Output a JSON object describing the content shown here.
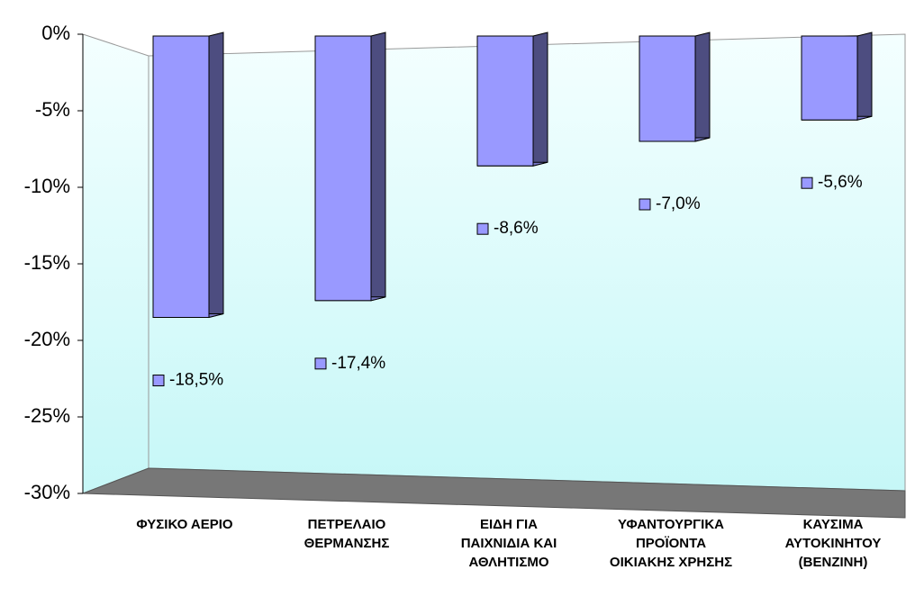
{
  "chart_data": {
    "type": "bar3d",
    "categories": [
      "ΦΥΣΙΚΟ ΑΕΡΙΟ",
      "ΠΕΤΡΕΛΑΙΟ\nΘΕΡΜΑΝΣΗΣ",
      "ΕΙΔΗ ΓΙΑ\nΠΑΙΧΝΙΔΙΑ ΚΑΙ\nΑΘΛΗΤΙΣΜΟ",
      "ΥΦΑΝΤΟΥΡΓΙΚΑ\nΠΡΟΪΟΝΤΑ\nΟΙΚΙΑΚΗΣ ΧΡΗΣΗΣ",
      "ΚΑΥΣΙΜΑ\nΑΥΤΟΚΙΝΗΤΟΥ\n(ΒΕΝΖΙΝΗ)"
    ],
    "values": [
      -18.5,
      -17.4,
      -8.6,
      -7.0,
      -5.6
    ],
    "value_labels": [
      "-18,5%",
      "-17,4%",
      "-8,6%",
      "-7,0%",
      "-5,6%"
    ],
    "color": "#9999ff",
    "ylim": [
      -30,
      0
    ],
    "yticks": [
      {
        "value": 0,
        "label": "0%"
      },
      {
        "value": -5,
        "label": "-5%"
      },
      {
        "value": -10,
        "label": "-10%"
      },
      {
        "value": -15,
        "label": "-15%"
      },
      {
        "value": -20,
        "label": "-20%"
      },
      {
        "value": -25,
        "label": "-25%"
      },
      {
        "value": -30,
        "label": "-30%"
      }
    ]
  }
}
